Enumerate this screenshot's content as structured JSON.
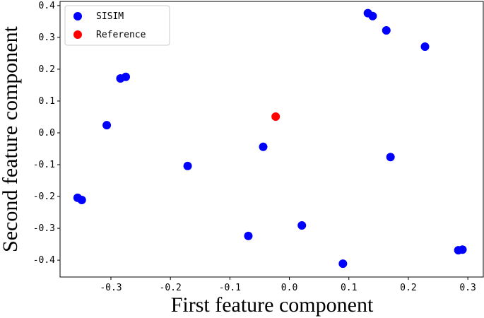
{
  "chart_data": {
    "type": "scatter",
    "x_label": "First feature component",
    "y_label": "Second feature component",
    "xlim": [
      -0.3855,
      0.326
    ],
    "ylim": [
      -0.453,
      0.413
    ],
    "xticks": [
      -0.3,
      -0.2,
      -0.1,
      {
        "value": 0,
        "label": "0.0"
      },
      0.1,
      0.2,
      0.3
    ],
    "yticks": [
      0.4,
      0.3,
      0.2,
      0.1,
      {
        "value": 0,
        "label": "0.0"
      },
      -0.1,
      -0.2,
      -0.3,
      -0.4
    ],
    "legend": "upper left",
    "series": [
      {
        "name": "SISIM",
        "color": "#0000ff",
        "x": [
          -0.356,
          -0.349,
          -0.307,
          -0.284,
          -0.275,
          -0.171,
          -0.069,
          -0.044,
          0.021,
          0.09,
          0.132,
          0.14,
          0.163,
          0.17,
          0.228,
          0.284,
          0.291
        ],
        "values": [
          -0.204,
          -0.211,
          0.024,
          0.171,
          0.176,
          -0.104,
          -0.324,
          -0.044,
          -0.291,
          -0.411,
          0.376,
          0.367,
          0.322,
          -0.076,
          0.271,
          -0.369,
          -0.367
        ]
      },
      {
        "name": "Reference",
        "color": "#ff0000",
        "x": [
          -0.023
        ],
        "values": [
          0.051
        ]
      }
    ]
  }
}
